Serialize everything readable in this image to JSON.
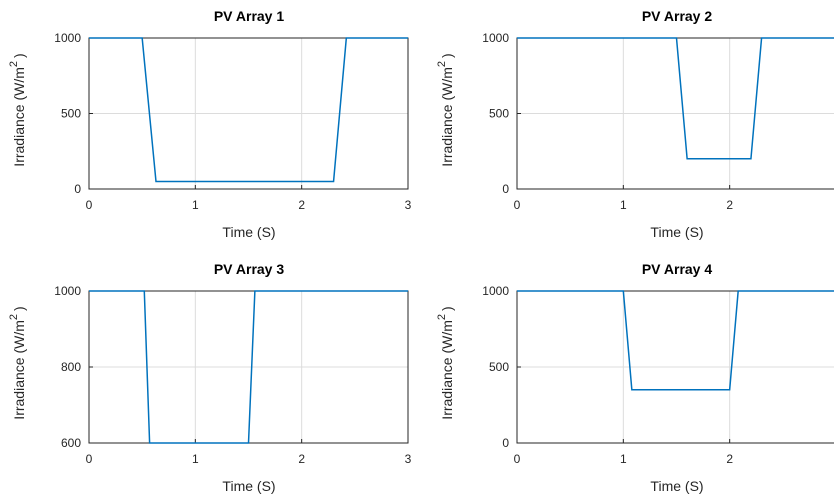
{
  "chart_data": [
    {
      "type": "line",
      "title": "PV Array 1",
      "xlabel": "Time (S)",
      "ylabel": "Irradiance (W/m",
      "ylabel_sup": "2",
      "ylabel_close": ")",
      "xlim": [
        0,
        3
      ],
      "ylim": [
        0,
        1000
      ],
      "xticks": [
        0,
        1,
        2,
        3
      ],
      "yticks": [
        0,
        500,
        1000
      ],
      "grid": true,
      "series": [
        {
          "x": [
            0,
            0.5,
            0.63,
            2.3,
            2.42,
            3
          ],
          "y": [
            1000,
            1000,
            50,
            50,
            1000,
            1000
          ]
        }
      ]
    },
    {
      "type": "line",
      "title": "PV Array 2",
      "xlabel": "Time (S)",
      "ylabel": "Irradiance (W/m",
      "ylabel_sup": "2",
      "ylabel_close": ")",
      "xlim": [
        0,
        3
      ],
      "ylim": [
        0,
        1000
      ],
      "xticks": [
        0,
        1,
        2
      ],
      "yticks": [
        0,
        500,
        1000
      ],
      "grid": true,
      "series": [
        {
          "x": [
            0,
            1.5,
            1.6,
            2.2,
            2.3,
            3
          ],
          "y": [
            1000,
            1000,
            200,
            200,
            1000,
            1000
          ]
        }
      ]
    },
    {
      "type": "line",
      "title": "PV Array 3",
      "xlabel": "Time (S)",
      "ylabel": "Irradiance (W/m",
      "ylabel_sup": "2",
      "ylabel_close": ")",
      "xlim": [
        0,
        3
      ],
      "ylim": [
        600,
        1000
      ],
      "xticks": [
        0,
        1,
        2,
        3
      ],
      "yticks": [
        600,
        800,
        1000
      ],
      "grid": true,
      "series": [
        {
          "x": [
            0,
            0.52,
            0.57,
            1.5,
            1.56,
            3
          ],
          "y": [
            1000,
            1000,
            600,
            600,
            1000,
            1000
          ]
        }
      ]
    },
    {
      "type": "line",
      "title": "PV Array 4",
      "xlabel": "Time (S)",
      "ylabel": "Irradiance (W/m",
      "ylabel_sup": "2",
      "ylabel_close": ")",
      "xlim": [
        0,
        3
      ],
      "ylim": [
        0,
        1000
      ],
      "xticks": [
        0,
        1,
        2
      ],
      "yticks": [
        0,
        500,
        1000
      ],
      "grid": true,
      "series": [
        {
          "x": [
            0,
            1.0,
            1.08,
            2.0,
            2.08,
            3
          ],
          "y": [
            1000,
            1000,
            350,
            350,
            1000,
            1000
          ]
        }
      ]
    }
  ]
}
